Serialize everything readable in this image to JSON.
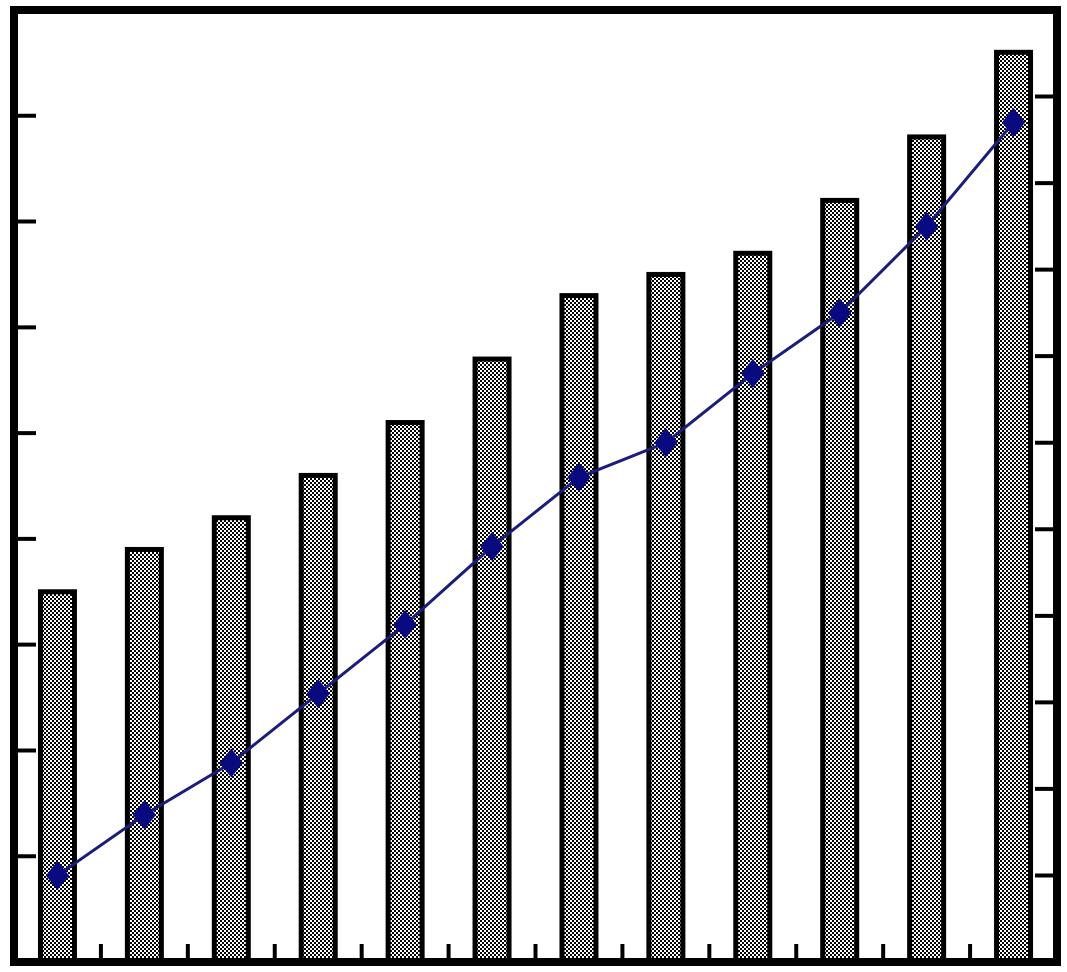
{
  "chart_data": {
    "type": "bar",
    "title": "",
    "xlabel": "",
    "ylabel": "",
    "ylabel_right": "",
    "categories": [
      "",
      "",
      "",
      "",
      "",
      "",
      "",
      "",
      "",
      "",
      "",
      ""
    ],
    "series": [
      {
        "type": "bar",
        "axis": "left",
        "values": [
          3.5,
          3.9,
          4.2,
          4.6,
          5.1,
          5.7,
          6.3,
          6.5,
          6.7,
          7.2,
          7.8,
          8.6
        ],
        "color": "#000000",
        "fill_pattern": "checker-gray"
      },
      {
        "type": "line",
        "axis": "right",
        "values": [
          1.0,
          1.7,
          2.3,
          3.1,
          3.9,
          4.8,
          5.6,
          6.0,
          6.8,
          7.5,
          8.5,
          9.7
        ],
        "color": "#1c1c7a",
        "marker": "diamond"
      }
    ],
    "ylim": [
      0,
      9
    ],
    "ylim_right": [
      0,
      11
    ],
    "yticks_left_count": 9,
    "yticks_right_count": 11,
    "grid": false,
    "legend": "none"
  }
}
